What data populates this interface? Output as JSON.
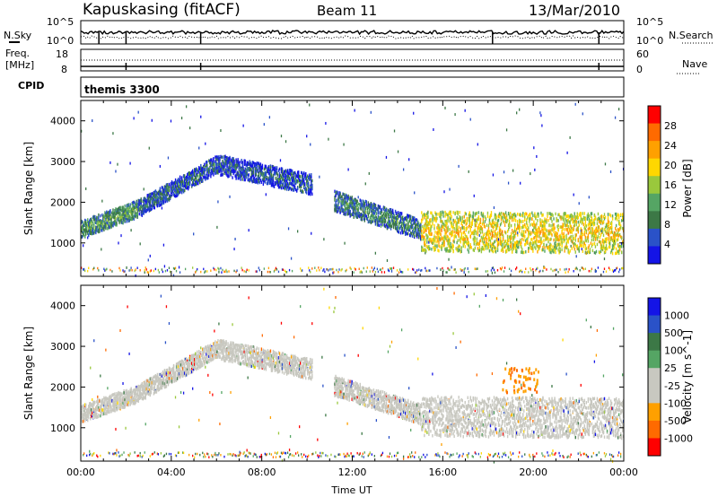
{
  "header": {
    "station": "Kapuskasing (fitACF)",
    "beam": "Beam 11",
    "date": "13/Mar/2010"
  },
  "noise_panel": {
    "left_label": "N.Sky",
    "right_label": "N.Search",
    "ticks_left": [
      "10^5",
      "10^0"
    ],
    "ticks_right": [
      "10^5",
      "10^0"
    ]
  },
  "freq_panel": {
    "left_label_1": "Freq.",
    "left_label_2": "[MHz]",
    "ticks_left": [
      "18",
      "8"
    ],
    "right_label": "Nave",
    "ticks_right": [
      "60",
      "0"
    ]
  },
  "cpid_panel": {
    "label": "CPID",
    "program": "themis 3300"
  },
  "colors": {
    "scale": [
      "#1414e6",
      "#2a52c8",
      "#3c7846",
      "#55a564",
      "#9ac83c",
      "#ffd700",
      "#ffa000",
      "#ff6a00",
      "#ff0000"
    ],
    "ground_scatter": "#c8c8c0"
  },
  "chart_data": [
    {
      "type": "heatmap",
      "title": "",
      "xlabel": "",
      "ylabel": "Slant Range [km]",
      "xlim_hours": [
        0,
        24
      ],
      "ylim": [
        180,
        4500
      ],
      "yticks": [
        "1000",
        "2000",
        "3000",
        "4000"
      ],
      "colorbar": {
        "label": "Power [dB]",
        "ticks": [
          "4",
          "8",
          "12",
          "16",
          "20",
          "24",
          "28"
        ],
        "range": [
          0,
          30
        ]
      },
      "scatter_regions": [
        {
          "t_start": 0.0,
          "t_end": 2.5,
          "r_center": [
            1300,
            1800
          ],
          "width": 300,
          "power": 10
        },
        {
          "t_start": 2.5,
          "t_end": 6.0,
          "r_center": [
            1800,
            2900
          ],
          "width": 300,
          "power": 6
        },
        {
          "t_start": 6.0,
          "t_end": 10.2,
          "r_center": [
            2900,
            2400
          ],
          "width": 350,
          "power": 5
        },
        {
          "t_start": 11.2,
          "t_end": 15.0,
          "r_center": [
            2000,
            1300
          ],
          "width": 350,
          "power": 8
        },
        {
          "t_start": 15.0,
          "t_end": 24.0,
          "r_center": [
            1250,
            1200
          ],
          "width": 700,
          "power": 18
        }
      ]
    },
    {
      "type": "heatmap",
      "title": "",
      "xlabel": "Time UT",
      "ylabel": "Slant Range [km]",
      "xlim_hours": [
        0,
        24
      ],
      "ylim": [
        180,
        4500
      ],
      "xticks": [
        "00:00",
        "04:00",
        "08:00",
        "12:00",
        "16:00",
        "20:00",
        "00:00"
      ],
      "yticks": [
        "1000",
        "2000",
        "3000",
        "4000"
      ],
      "colorbar": {
        "label": "Velocity [m s^-1]",
        "ticks": [
          "1000",
          "500",
          "100",
          "25",
          "-25",
          "-100",
          "-500",
          "-1000"
        ]
      },
      "ground_scatter_regions": [
        {
          "t_start": 0.0,
          "t_end": 2.5,
          "r_center": [
            1300,
            1800
          ],
          "width": 300
        },
        {
          "t_start": 2.5,
          "t_end": 6.0,
          "r_center": [
            1800,
            2900
          ],
          "width": 300
        },
        {
          "t_start": 6.0,
          "t_end": 10.2,
          "r_center": [
            2900,
            2400
          ],
          "width": 350
        },
        {
          "t_start": 11.2,
          "t_end": 15.0,
          "r_center": [
            2000,
            1300
          ],
          "width": 350
        },
        {
          "t_start": 15.0,
          "t_end": 24.0,
          "r_center": [
            1250,
            1200
          ],
          "width": 700
        }
      ],
      "ionospheric_patch": {
        "t_start": 18.6,
        "t_end": 20.2,
        "range": [
          1900,
          2500
        ],
        "velocity": -300
      }
    }
  ]
}
